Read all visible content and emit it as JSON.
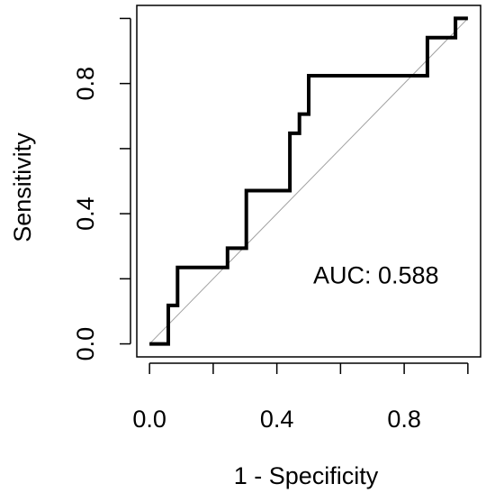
{
  "chart_data": {
    "type": "line",
    "xlabel": "1 - Specificity",
    "ylabel": "Sensitivity",
    "xlim": [
      -0.04,
      1.04
    ],
    "ylim": [
      -0.04,
      1.04
    ],
    "x_ticks": [
      0.0,
      0.2,
      0.4,
      0.6,
      0.8,
      1.0
    ],
    "x_tick_labels": [
      "0.0",
      "",
      "0.4",
      "",
      "0.8",
      ""
    ],
    "y_ticks": [
      0.0,
      0.2,
      0.4,
      0.6,
      0.8,
      1.0
    ],
    "y_tick_labels": [
      "0.0",
      "",
      "0.4",
      "",
      "0.8",
      ""
    ],
    "grid": false,
    "reference_line": {
      "from": [
        0,
        0
      ],
      "to": [
        1,
        1
      ],
      "color": "#a0a0a0"
    },
    "series": [
      {
        "color": "#000000",
        "x": [
          0.0,
          0.059,
          0.059,
          0.088,
          0.088,
          0.245,
          0.245,
          0.304,
          0.304,
          0.441,
          0.441,
          0.471,
          0.471,
          0.5,
          0.5,
          0.873,
          0.873,
          0.961,
          0.961,
          1.0
        ],
        "y": [
          0.0,
          0.0,
          0.118,
          0.118,
          0.235,
          0.235,
          0.294,
          0.294,
          0.471,
          0.471,
          0.647,
          0.647,
          0.706,
          0.706,
          0.824,
          0.824,
          0.941,
          0.941,
          1.0,
          1.0
        ]
      }
    ],
    "annotations": [
      {
        "text": "AUC: 0.588",
        "x": 0.7,
        "y": 0.2
      }
    ]
  }
}
